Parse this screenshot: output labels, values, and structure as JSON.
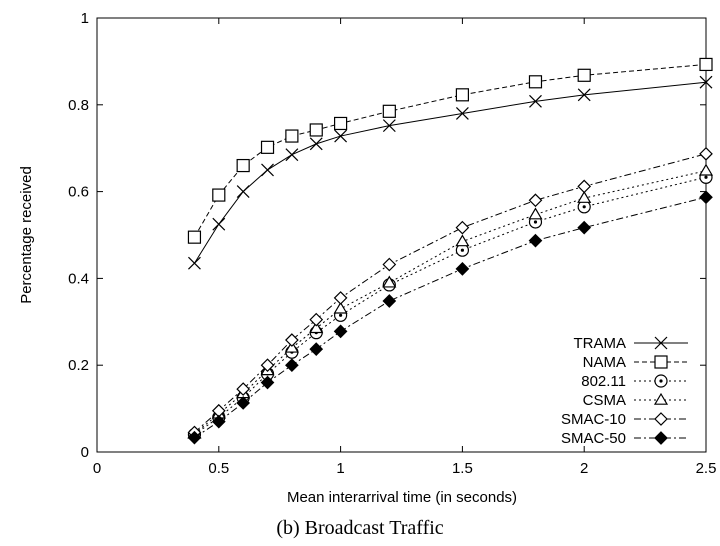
{
  "caption": "(b) Broadcast Traffic",
  "chart_data": {
    "type": "line",
    "title": "",
    "xlabel": "Mean interarrival time (in seconds)",
    "ylabel": "Percentage received",
    "xlim": [
      0,
      2.5
    ],
    "ylim": [
      0,
      1
    ],
    "x_ticks": [
      0,
      0.5,
      1,
      1.5,
      2,
      2.5
    ],
    "x_tick_labels": [
      "0",
      "0.5",
      "1",
      "1.5",
      "2",
      "2.5"
    ],
    "y_ticks": [
      0,
      0.2,
      0.4,
      0.6,
      0.8,
      1
    ],
    "y_tick_labels": [
      "0",
      "0.2",
      "0.4",
      "0.6",
      "0.8",
      "1"
    ],
    "grid": false,
    "legend_position": "bottom-right",
    "series": [
      {
        "name": "TRAMA",
        "marker": "x",
        "dash": "solid",
        "x": [
          0.4,
          0.5,
          0.6,
          0.7,
          0.8,
          0.9,
          1.0,
          1.2,
          1.5,
          1.8,
          2.0,
          2.5
        ],
        "y": [
          0.435,
          0.525,
          0.6,
          0.65,
          0.685,
          0.71,
          0.728,
          0.752,
          0.78,
          0.808,
          0.823,
          0.852
        ]
      },
      {
        "name": "NAMA",
        "marker": "square",
        "dash": "dash",
        "x": [
          0.4,
          0.5,
          0.6,
          0.7,
          0.8,
          0.9,
          1.0,
          1.2,
          1.5,
          1.8,
          2.0,
          2.5
        ],
        "y": [
          0.495,
          0.592,
          0.66,
          0.702,
          0.728,
          0.742,
          0.757,
          0.785,
          0.823,
          0.853,
          0.868,
          0.893
        ]
      },
      {
        "name": "802.11",
        "marker": "circle",
        "dash": "dot",
        "x": [
          0.4,
          0.5,
          0.6,
          0.7,
          0.8,
          0.9,
          1.0,
          1.2,
          1.5,
          1.8,
          2.0,
          2.5
        ],
        "y": [
          0.04,
          0.08,
          0.125,
          0.18,
          0.23,
          0.275,
          0.315,
          0.385,
          0.465,
          0.53,
          0.565,
          0.633
        ]
      },
      {
        "name": "CSMA",
        "marker": "triangle",
        "dash": "dot",
        "x": [
          0.4,
          0.5,
          0.6,
          0.7,
          0.8,
          0.9,
          1.0,
          1.2,
          1.5,
          1.8,
          2.0,
          2.5
        ],
        "y": [
          0.042,
          0.088,
          0.135,
          0.188,
          0.24,
          0.285,
          0.33,
          0.39,
          0.485,
          0.547,
          0.585,
          0.648
        ]
      },
      {
        "name": "SMAC-10",
        "marker": "diamond",
        "dash": "dashdot",
        "x": [
          0.4,
          0.5,
          0.6,
          0.7,
          0.8,
          0.9,
          1.0,
          1.2,
          1.5,
          1.8,
          2.0,
          2.5
        ],
        "y": [
          0.045,
          0.095,
          0.145,
          0.2,
          0.258,
          0.305,
          0.355,
          0.432,
          0.517,
          0.58,
          0.612,
          0.687
        ]
      },
      {
        "name": "SMAC-50",
        "marker": "filled-diamond",
        "dash": "dashdot",
        "x": [
          0.4,
          0.5,
          0.6,
          0.7,
          0.8,
          0.9,
          1.0,
          1.2,
          1.5,
          1.8,
          2.0,
          2.5
        ],
        "y": [
          0.033,
          0.07,
          0.113,
          0.16,
          0.2,
          0.237,
          0.278,
          0.348,
          0.422,
          0.487,
          0.517,
          0.587
        ]
      }
    ]
  }
}
